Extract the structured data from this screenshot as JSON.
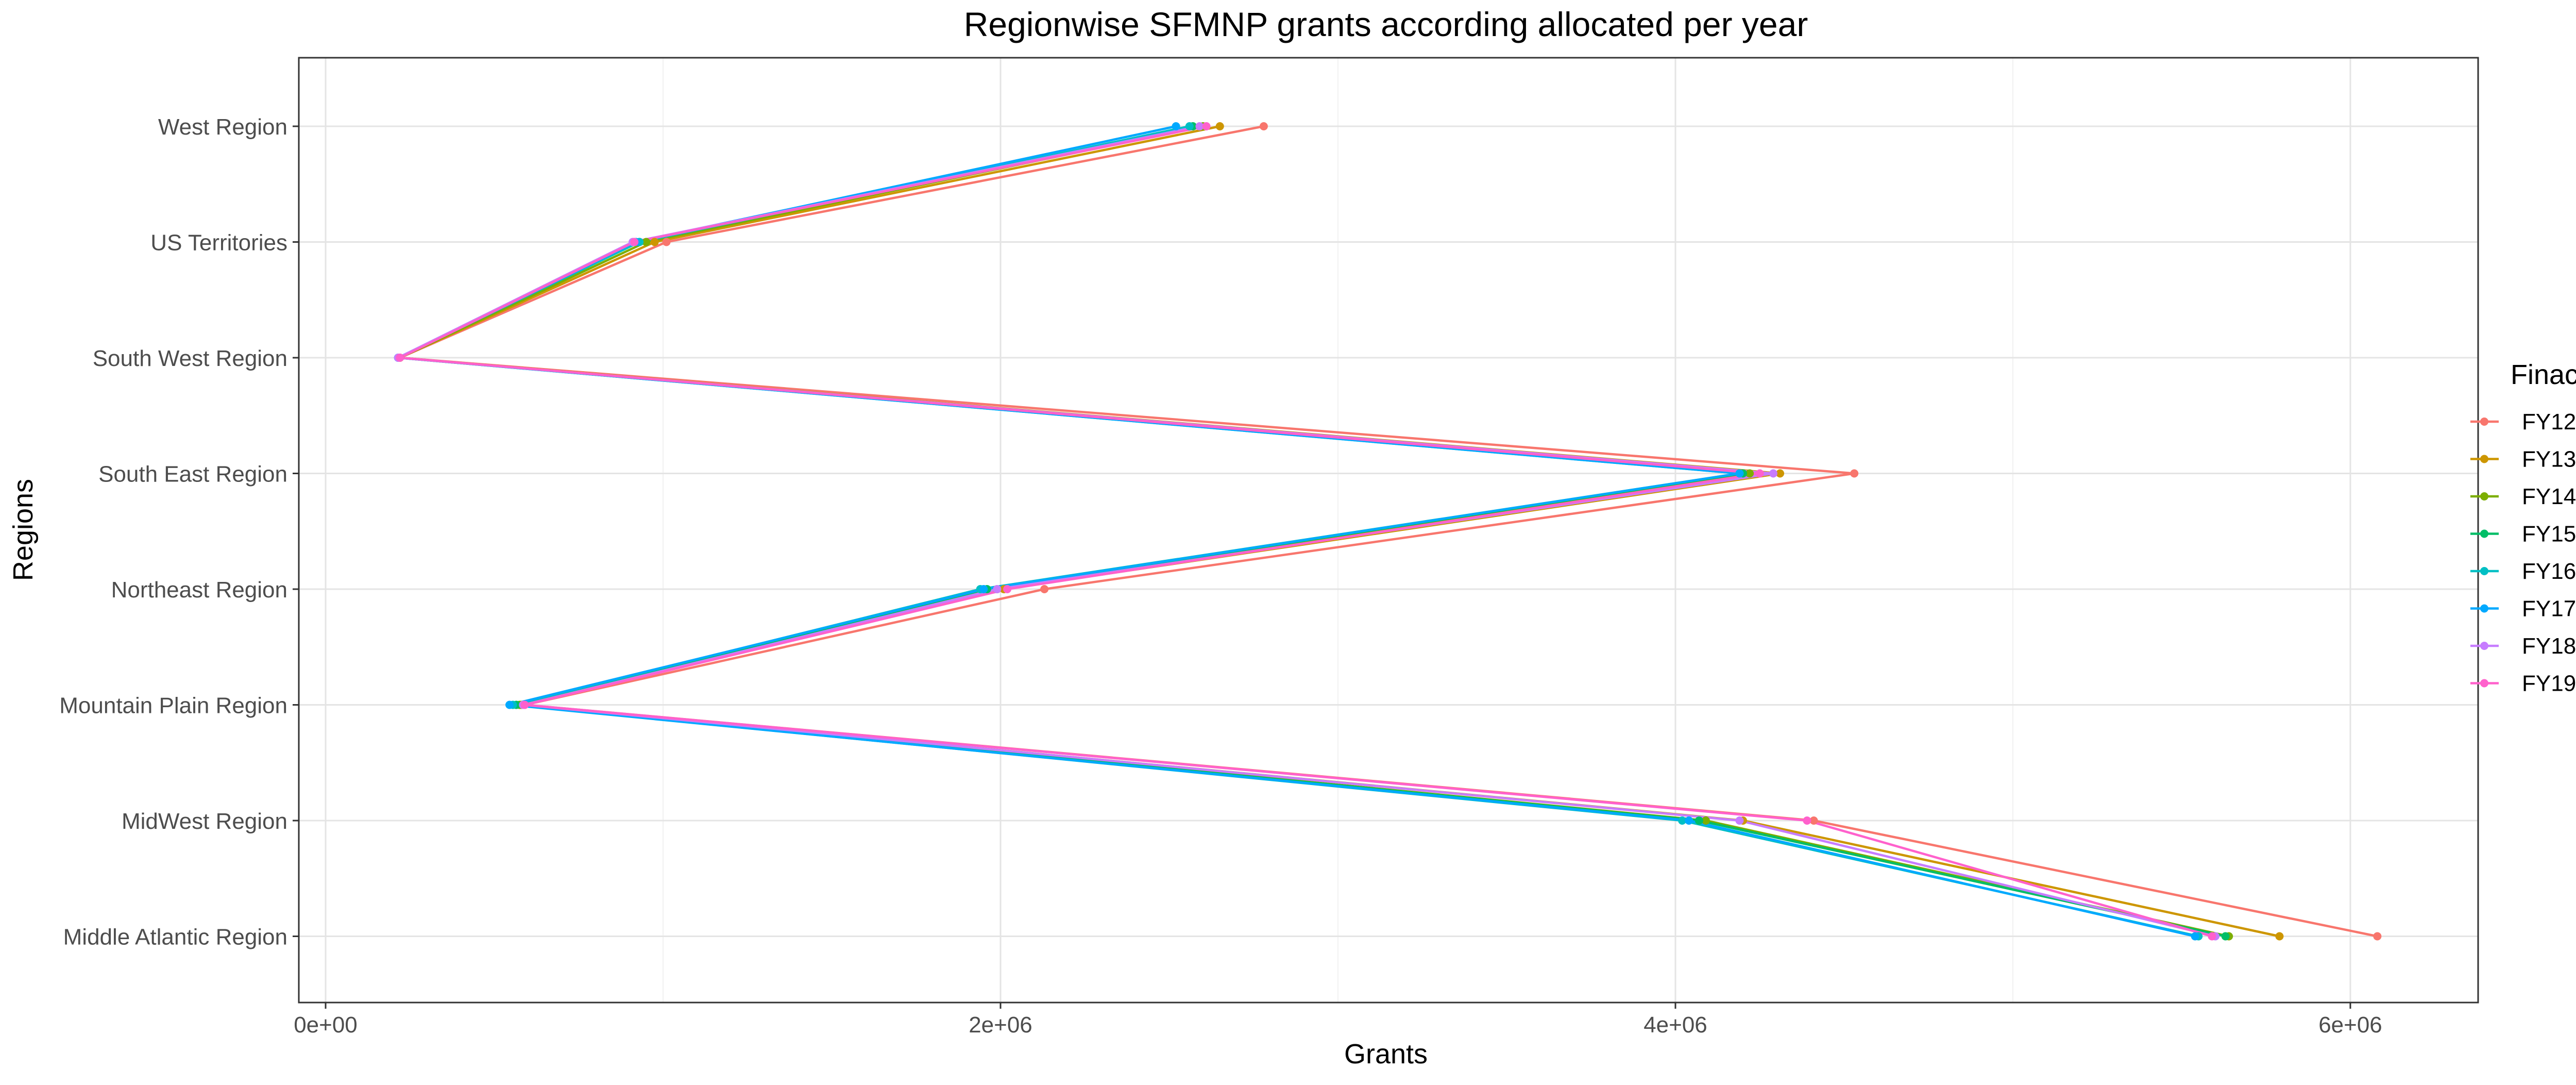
{
  "chart_data": {
    "type": "line",
    "title": "Regionwise SFMNP grants according allocated per year",
    "xlabel": "Grants",
    "ylabel": "Regions",
    "xlim": [
      -80000,
      6350000
    ],
    "x_ticks": [
      0,
      2000000,
      4000000,
      6000000
    ],
    "x_tick_labels": [
      "0e+00",
      "2e+06",
      "4e+06",
      "6e+06"
    ],
    "categories": [
      "West Region",
      "US Territories",
      "South West Region",
      "South East Region",
      "Northeast Region",
      "Mountain Plain Region",
      "MidWest Region",
      "Middle Atlantic Region"
    ],
    "grid": true,
    "legend_title": "Finacial Year",
    "legend_position": "right",
    "series": [
      {
        "name": "FY12",
        "color": "#F8766D",
        "values": [
          2780000,
          1010000,
          220000,
          4530000,
          2130000,
          590000,
          4410000,
          6080000
        ]
      },
      {
        "name": "FY13",
        "color": "#CD9600",
        "values": [
          2650000,
          975000,
          220000,
          4310000,
          2010000,
          580000,
          4200000,
          5790000
        ]
      },
      {
        "name": "FY14",
        "color": "#7CAE00",
        "values": [
          2600000,
          950000,
          220000,
          4220000,
          1990000,
          575000,
          4090000,
          5640000
        ]
      },
      {
        "name": "FY15",
        "color": "#00BE67",
        "values": [
          2570000,
          930000,
          215000,
          4200000,
          1960000,
          565000,
          4070000,
          5630000
        ]
      },
      {
        "name": "FY16",
        "color": "#00BFC4",
        "values": [
          2560000,
          930000,
          215000,
          4190000,
          1940000,
          555000,
          4020000,
          5550000
        ]
      },
      {
        "name": "FY17",
        "color": "#00A9FF",
        "values": [
          2520000,
          920000,
          215000,
          4190000,
          1950000,
          545000,
          4040000,
          5540000
        ]
      },
      {
        "name": "FY18",
        "color": "#C77CFF",
        "values": [
          2590000,
          910000,
          215000,
          4290000,
          1990000,
          585000,
          4190000,
          5600000
        ]
      },
      {
        "name": "FY19",
        "color": "#FF61CC",
        "values": [
          2610000,
          915000,
          220000,
          4250000,
          2020000,
          590000,
          4390000,
          5590000
        ]
      }
    ]
  }
}
